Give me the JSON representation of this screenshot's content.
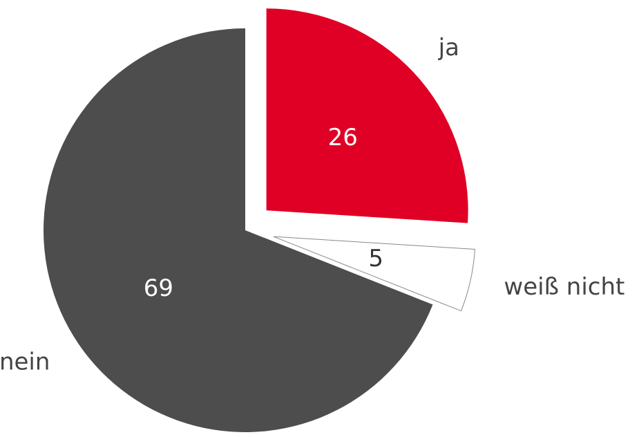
{
  "chart_data": {
    "type": "pie",
    "categories": [
      "ja",
      "weiß nicht",
      "nein"
    ],
    "values": [
      26,
      5,
      69
    ],
    "colors": [
      "#e00025",
      "#ffffff",
      "#4d4d4d"
    ],
    "explode": [
      true,
      true,
      false
    ]
  }
}
